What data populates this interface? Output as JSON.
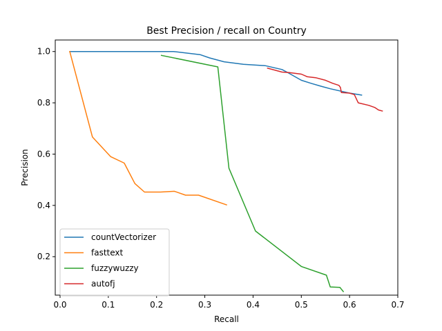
{
  "chart_data": {
    "type": "line",
    "title": "Best Precision / recall on Country",
    "xlabel": "Recall",
    "ylabel": "Precision",
    "xlim": [
      -0.01,
      0.7
    ],
    "ylim": [
      0.05,
      1.045
    ],
    "xticks": [
      0.0,
      0.1,
      0.2,
      0.3,
      0.4,
      0.5,
      0.6,
      0.7
    ],
    "xtick_labels": [
      "0.0",
      "0.1",
      "0.2",
      "0.3",
      "0.4",
      "0.5",
      "0.6",
      "0.7"
    ],
    "yticks": [
      0.2,
      0.4,
      0.6,
      0.8,
      1.0
    ],
    "ytick_labels": [
      "0.2",
      "0.4",
      "0.6",
      "0.8",
      "1.0"
    ],
    "grid": false,
    "legend_position": "lower-left",
    "series": [
      {
        "name": "countVectorizer",
        "color": "#1f77b4",
        "x": [
          0.02,
          0.05,
          0.1,
          0.2,
          0.235,
          0.29,
          0.31,
          0.34,
          0.38,
          0.425,
          0.46,
          0.47,
          0.5,
          0.52,
          0.54,
          0.56,
          0.6,
          0.625
        ],
        "y": [
          1.0,
          1.0,
          1.0,
          1.0,
          1.0,
          0.988,
          0.975,
          0.96,
          0.95,
          0.945,
          0.93,
          0.92,
          0.888,
          0.876,
          0.865,
          0.855,
          0.838,
          0.83
        ]
      },
      {
        "name": "fasttext",
        "color": "#ff7f0e",
        "x": [
          0.02,
          0.067,
          0.105,
          0.133,
          0.155,
          0.175,
          0.208,
          0.237,
          0.26,
          0.287,
          0.345
        ],
        "y": [
          1.0,
          0.667,
          0.59,
          0.565,
          0.485,
          0.452,
          0.452,
          0.455,
          0.44,
          0.44,
          0.402
        ]
      },
      {
        "name": "fuzzywuzzy",
        "color": "#2ca02c",
        "x": [
          0.21,
          0.327,
          0.35,
          0.405,
          0.5,
          0.552,
          0.56,
          0.58,
          0.587
        ],
        "y": [
          0.985,
          0.94,
          0.545,
          0.3,
          0.162,
          0.128,
          0.082,
          0.08,
          0.064
        ]
      },
      {
        "name": "autofj",
        "color": "#d62728",
        "x": [
          0.43,
          0.46,
          0.475,
          0.5,
          0.512,
          0.53,
          0.55,
          0.565,
          0.578,
          0.581,
          0.583,
          0.6,
          0.61,
          0.618,
          0.64,
          0.652,
          0.66,
          0.668
        ],
        "y": [
          0.935,
          0.92,
          0.918,
          0.912,
          0.902,
          0.898,
          0.888,
          0.876,
          0.868,
          0.86,
          0.84,
          0.838,
          0.832,
          0.8,
          0.79,
          0.782,
          0.772,
          0.768
        ]
      }
    ]
  }
}
